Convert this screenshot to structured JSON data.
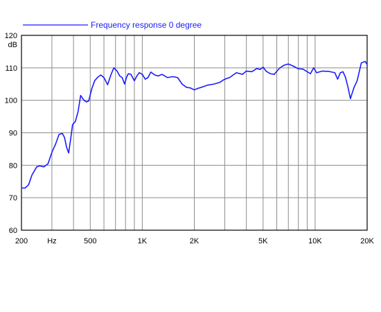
{
  "chart_data": {
    "type": "line",
    "legend": {
      "placement": "top-left",
      "entries": [
        "Frequency response 0 degree"
      ]
    },
    "ylabel": "dB",
    "x_scale": "log",
    "xlim": [
      200,
      20000
    ],
    "ylim": [
      60,
      120
    ],
    "grid": true,
    "x_ticks": [
      200,
      300,
      400,
      500,
      600,
      700,
      800,
      900,
      1000,
      2000,
      3000,
      4000,
      5000,
      6000,
      7000,
      8000,
      9000,
      10000,
      20000
    ],
    "x_tick_labels": [
      {
        "value": 200,
        "label": "200"
      },
      {
        "value": 300,
        "label": "Hz"
      },
      {
        "value": 500,
        "label": "500"
      },
      {
        "value": 1000,
        "label": "1K"
      },
      {
        "value": 2000,
        "label": "2K"
      },
      {
        "value": 5000,
        "label": "5K"
      },
      {
        "value": 10000,
        "label": "10K"
      },
      {
        "value": 20000,
        "label": "20K"
      }
    ],
    "y_ticks": [
      60,
      70,
      80,
      90,
      100,
      110,
      120
    ],
    "y_tick_labels": [
      "60",
      "70",
      "80",
      "90",
      "100",
      "110",
      "120"
    ],
    "series": [
      {
        "name": "Frequency response 0 degree",
        "color": "#1a1aff",
        "x": [
          200,
          210,
          220,
          230,
          245,
          255,
          270,
          285,
          300,
          315,
          330,
          345,
          355,
          365,
          375,
          385,
          395,
          410,
          425,
          440,
          460,
          475,
          490,
          510,
          530,
          550,
          575,
          600,
          630,
          660,
          685,
          715,
          740,
          765,
          790,
          810,
          830,
          860,
          900,
          930,
          960,
          1000,
          1040,
          1080,
          1120,
          1180,
          1240,
          1300,
          1400,
          1500,
          1600,
          1700,
          1800,
          1900,
          2000,
          2100,
          2200,
          2400,
          2600,
          2800,
          3000,
          3200,
          3500,
          3800,
          4000,
          4300,
          4600,
          4800,
          5000,
          5200,
          5500,
          5800,
          6200,
          6600,
          7000,
          7500,
          8000,
          8500,
          9000,
          9400,
          9800,
          10200,
          11000,
          12000,
          13000,
          13500,
          14000,
          14500,
          15000,
          15500,
          16000,
          16800,
          17500,
          18500,
          19500,
          20000
        ],
        "y": [
          73,
          73,
          74,
          77,
          79.5,
          79.8,
          79.5,
          80.5,
          84,
          86.5,
          89.5,
          89.8,
          88.5,
          85.5,
          83.8,
          88,
          92.5,
          93.5,
          96.5,
          101.5,
          100,
          99.5,
          99.8,
          103.5,
          106,
          107,
          107.8,
          107,
          104.8,
          108,
          110,
          109,
          107.5,
          107,
          105,
          107,
          108.2,
          108,
          106,
          107.5,
          108.5,
          108,
          106.5,
          107,
          108.7,
          107.8,
          107.5,
          108,
          107,
          107.3,
          107,
          105,
          104,
          103.8,
          103.2,
          103.7,
          104,
          104.7,
          105,
          105.5,
          106.5,
          107,
          108.5,
          108,
          109,
          108.8,
          109.8,
          109.5,
          110.2,
          109,
          108.2,
          108,
          109.8,
          110.8,
          111.2,
          110.5,
          109.7,
          109.6,
          108.8,
          108.2,
          110,
          108.5,
          109,
          108.9,
          108.5,
          106.5,
          108.5,
          108.8,
          107,
          104,
          100.5,
          104,
          106,
          111.5,
          112,
          111
        ]
      }
    ]
  }
}
